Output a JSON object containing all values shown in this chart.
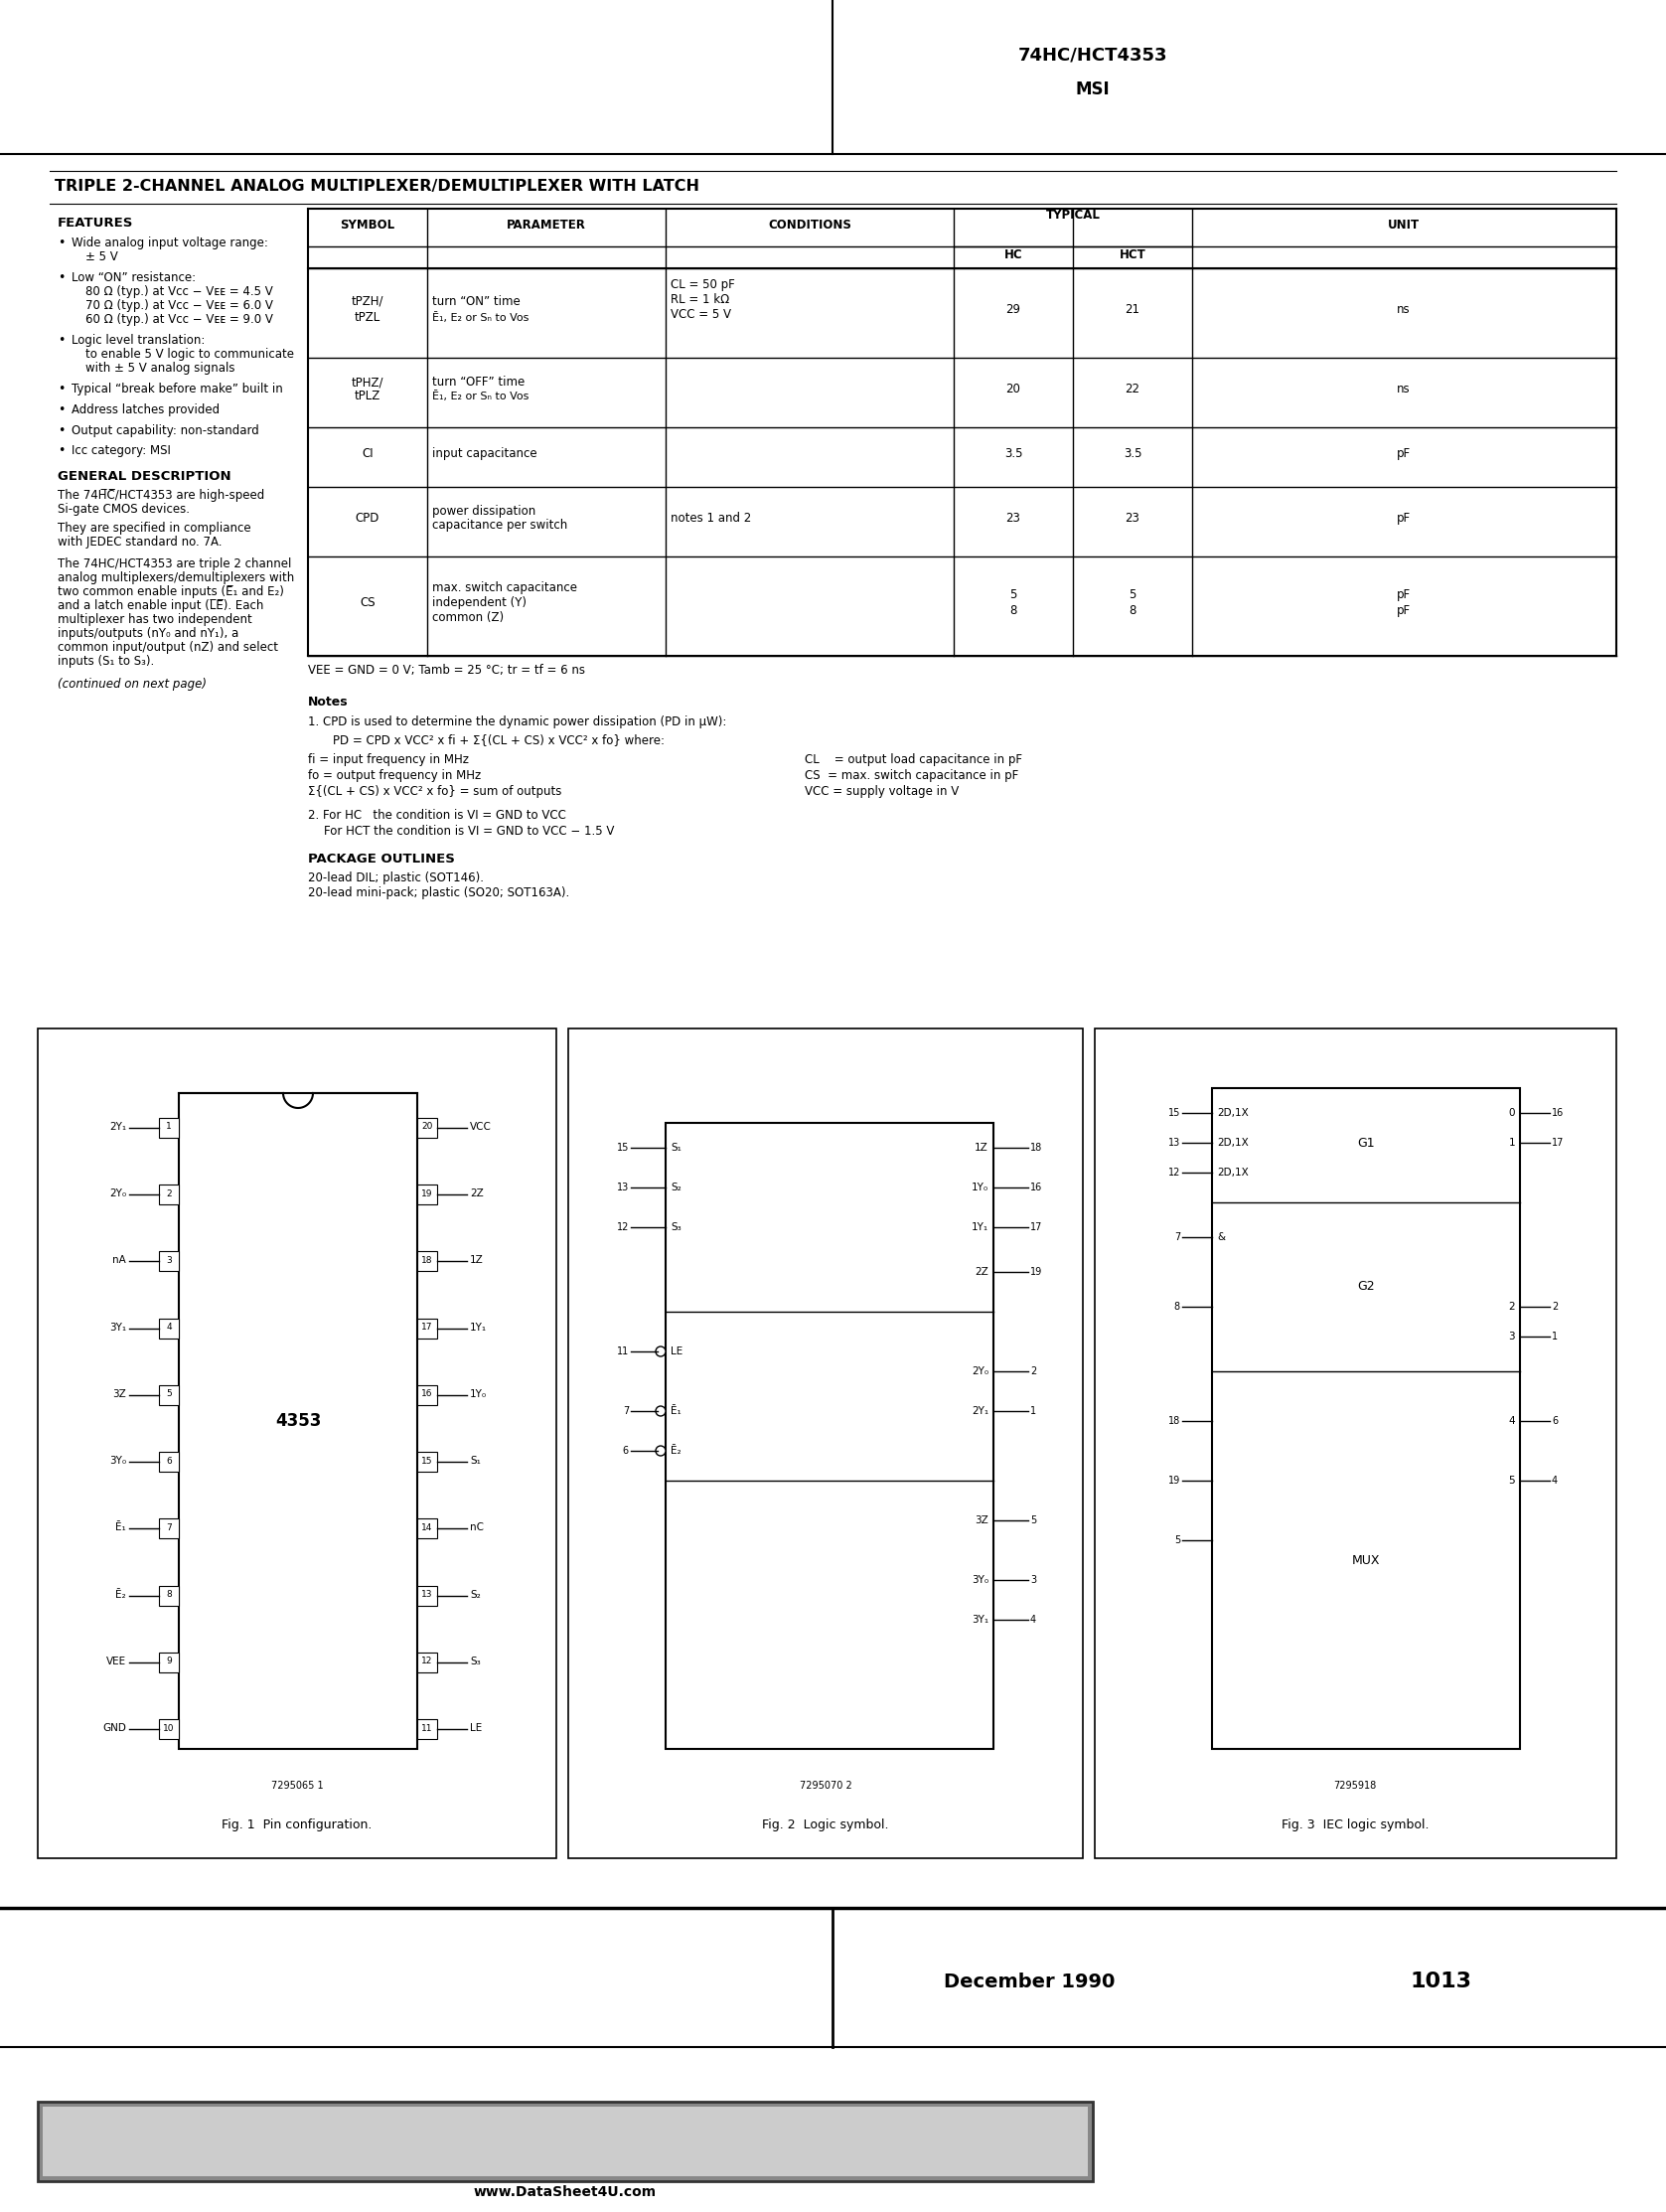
{
  "title_main": "74HC/HCT4353",
  "title_sub": "MSI",
  "page_title": "TRIPLE 2-CHANNEL ANALOG MULTIPLEXER/DEMULTIPLEXER WITH LATCH",
  "features_title": "FEATURES",
  "gen_desc_title": "GENERAL DESCRIPTION",
  "fig1_caption": "Fig. 1  Pin configuration.",
  "fig2_caption": "Fig. 2  Logic symbol.",
  "fig3_caption": "Fig. 3  IEC logic symbol.",
  "footer_date": "December 1990",
  "footer_page": "1013",
  "watermark": "www.DataSheet4U.com",
  "bg_color": "#ffffff",
  "gray_bar_color": "#aaaaaa",
  "gray_bar_dark": "#555555"
}
